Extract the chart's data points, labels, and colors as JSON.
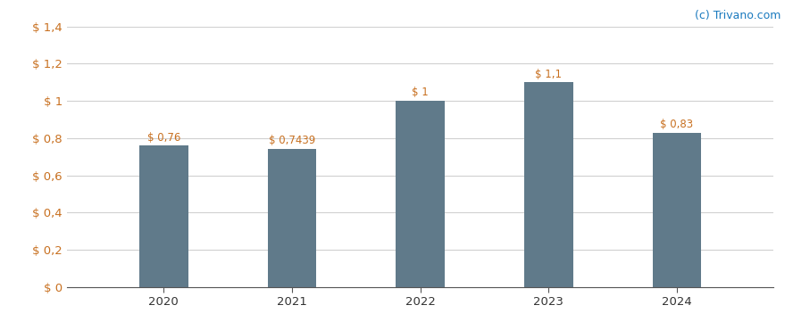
{
  "categories": [
    "2020",
    "2021",
    "2022",
    "2023",
    "2024"
  ],
  "values": [
    0.76,
    0.7439,
    1.0,
    1.1,
    0.83
  ],
  "labels": [
    "$ 0,76",
    "$ 0,7439",
    "$ 1",
    "$ 1,1",
    "$ 0,83"
  ],
  "bar_color": "#607a8a",
  "background_color": "#ffffff",
  "ylim": [
    0,
    1.4
  ],
  "yticks": [
    0,
    0.2,
    0.4,
    0.6,
    0.8,
    1.0,
    1.2,
    1.4
  ],
  "ytick_labels": [
    "$ 0",
    "$ 0,2",
    "$ 0,4",
    "$ 0,6",
    "$ 0,8",
    "$ 1",
    "$ 1,2",
    "$ 1,4"
  ],
  "grid_color": "#d0d0d0",
  "label_color": "#c87020",
  "watermark": "(c) Trivano.com",
  "watermark_color": "#1a7abf",
  "label_fontsize": 8.5,
  "tick_fontsize": 9.5,
  "watermark_fontsize": 9,
  "bar_width": 0.38,
  "xlim_left": -0.75,
  "xlim_right": 4.75
}
